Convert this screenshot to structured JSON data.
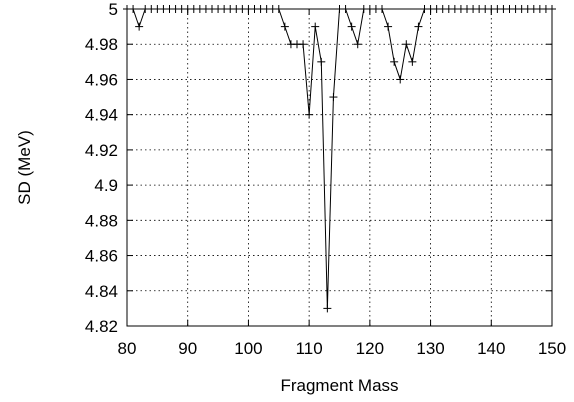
{
  "chart_data": {
    "type": "line",
    "title": "",
    "xlabel": "Fragment Mass",
    "ylabel": "SD (MeV)",
    "xlim": [
      80,
      150
    ],
    "ylim": [
      4.82,
      5.0
    ],
    "xticks": [
      80,
      90,
      100,
      110,
      120,
      130,
      140,
      150
    ],
    "yticks": [
      4.82,
      4.84,
      4.86,
      4.88,
      4.9,
      4.92,
      4.94,
      4.96,
      4.98,
      5.0
    ],
    "xtick_labels": [
      "80",
      "90",
      "100",
      "110",
      "120",
      "130",
      "140",
      "150"
    ],
    "ytick_labels": [
      "4.82",
      "4.84",
      "4.86",
      "4.88",
      "4.9",
      "4.92",
      "4.94",
      "4.96",
      "4.98",
      "5"
    ],
    "grid": true,
    "marker": "plus",
    "series": [
      {
        "x": [
          80,
          81,
          82,
          83,
          84,
          85,
          86,
          87,
          88,
          89,
          90,
          91,
          92,
          93,
          94,
          95,
          96,
          97,
          98,
          99,
          100,
          101,
          102,
          103,
          104,
          105,
          106,
          107,
          108,
          109,
          110,
          111,
          112,
          113,
          114,
          115,
          116,
          117,
          118,
          119,
          120,
          121,
          122,
          123,
          124,
          125,
          126,
          127,
          128,
          129,
          130,
          131,
          132,
          133,
          134,
          135,
          136,
          137,
          138,
          139,
          140,
          141,
          142,
          143,
          144,
          145,
          146,
          147,
          148,
          149,
          150
        ],
        "values": [
          5.0,
          5.0,
          4.99,
          5.0,
          5.0,
          5.0,
          5.0,
          5.0,
          5.0,
          5.0,
          5.0,
          5.0,
          5.0,
          5.0,
          5.0,
          5.0,
          5.0,
          5.0,
          5.0,
          5.0,
          5.0,
          5.0,
          5.0,
          5.0,
          5.0,
          5.0,
          4.99,
          4.98,
          4.98,
          4.98,
          4.94,
          4.99,
          4.97,
          4.83,
          4.95,
          5.0,
          5.0,
          4.99,
          4.98,
          5.0,
          5.0,
          5.0,
          5.0,
          4.99,
          4.97,
          4.96,
          4.98,
          4.97,
          4.99,
          5.0,
          5.0,
          5.0,
          5.0,
          5.0,
          5.0,
          5.0,
          5.0,
          5.0,
          5.0,
          5.0,
          5.0,
          5.0,
          5.0,
          5.0,
          5.0,
          5.0,
          5.0,
          5.0,
          5.0,
          5.0,
          5.0
        ]
      }
    ]
  }
}
